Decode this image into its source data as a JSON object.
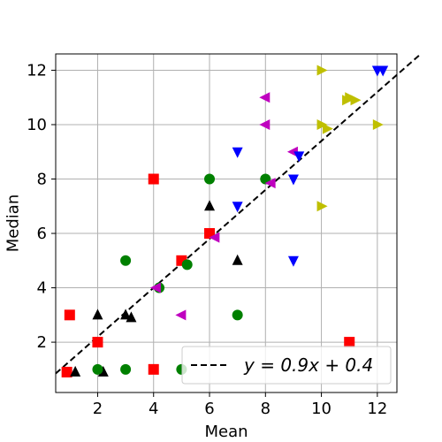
{
  "chart_data": {
    "type": "scatter",
    "title": "",
    "xlabel": "Mean",
    "ylabel": "Median",
    "xlim": [
      0.5,
      12.7
    ],
    "ylim": [
      0.15,
      12.6
    ],
    "xticks": [
      2,
      4,
      6,
      8,
      10,
      12
    ],
    "yticks": [
      2,
      4,
      6,
      8,
      10,
      12
    ],
    "grid": true,
    "legend_placement": "lower-right",
    "fit_line": {
      "label_prefix": "y = ",
      "label_expr": "0.9x + 0.4",
      "slope": 0.9,
      "intercept": 0.4,
      "color": "#000000",
      "style": "dashed"
    },
    "series": [
      {
        "marker": "square",
        "color": "#ff0000",
        "points": [
          [
            0.9,
            0.9
          ],
          [
            1.0,
            3.0
          ],
          [
            2.0,
            2.0
          ],
          [
            4.0,
            1.0
          ],
          [
            4.0,
            8.0
          ],
          [
            5.0,
            5.0
          ],
          [
            6.0,
            6.0
          ],
          [
            11.0,
            2.0
          ]
        ]
      },
      {
        "marker": "triangle-up",
        "color": "#000000",
        "points": [
          [
            1.2,
            0.9
          ],
          [
            2.0,
            3.0
          ],
          [
            2.2,
            0.9
          ],
          [
            3.0,
            3.0
          ],
          [
            3.2,
            2.9
          ],
          [
            6.0,
            7.0
          ],
          [
            7.0,
            5.0
          ]
        ]
      },
      {
        "marker": "circle",
        "color": "#008000",
        "points": [
          [
            2.0,
            1.0
          ],
          [
            3.0,
            1.0
          ],
          [
            3.0,
            5.0
          ],
          [
            4.2,
            4.0
          ],
          [
            5.0,
            1.0
          ],
          [
            5.2,
            4.85
          ],
          [
            6.0,
            8.0
          ],
          [
            7.0,
            3.0
          ],
          [
            8.0,
            8.0
          ]
        ]
      },
      {
        "marker": "triangle-left",
        "color": "#bf00bf",
        "points": [
          [
            4.1,
            4.0
          ],
          [
            5.0,
            3.0
          ],
          [
            6.2,
            5.85
          ],
          [
            8.0,
            11.0
          ],
          [
            8.0,
            10.0
          ],
          [
            8.2,
            7.85
          ],
          [
            9.0,
            9.0
          ]
        ]
      },
      {
        "marker": "triangle-down",
        "color": "#0000ff",
        "points": [
          [
            7.0,
            9.0
          ],
          [
            7.0,
            7.0
          ],
          [
            9.0,
            8.0
          ],
          [
            9.0,
            5.0
          ],
          [
            9.2,
            8.85
          ],
          [
            12.0,
            12.0
          ],
          [
            12.2,
            12.0
          ]
        ]
      },
      {
        "marker": "triangle-right",
        "color": "#bfbf00",
        "points": [
          [
            10.0,
            12.0
          ],
          [
            10.0,
            10.0
          ],
          [
            10.2,
            9.85
          ],
          [
            10.0,
            7.0
          ],
          [
            10.9,
            10.9
          ],
          [
            11.0,
            11.0
          ],
          [
            11.2,
            10.9
          ],
          [
            12.0,
            10.0
          ]
        ]
      }
    ]
  }
}
